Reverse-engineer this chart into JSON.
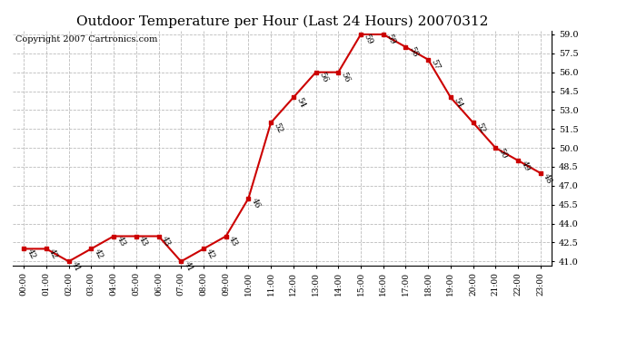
{
  "title": "Outdoor Temperature per Hour (Last 24 Hours) 20070312",
  "copyright": "Copyright 2007 Cartronics.com",
  "hours": [
    "00:00",
    "01:00",
    "02:00",
    "03:00",
    "04:00",
    "05:00",
    "06:00",
    "07:00",
    "08:00",
    "09:00",
    "10:00",
    "11:00",
    "12:00",
    "13:00",
    "14:00",
    "15:00",
    "16:00",
    "17:00",
    "18:00",
    "19:00",
    "20:00",
    "21:00",
    "22:00",
    "23:00"
  ],
  "temps": [
    42,
    42,
    41,
    42,
    43,
    43,
    43,
    41,
    42,
    43,
    46,
    52,
    54,
    56,
    56,
    59,
    59,
    58,
    57,
    54,
    52,
    50,
    49,
    48
  ],
  "line_color": "#cc0000",
  "marker_color": "#cc0000",
  "bg_color": "#ffffff",
  "grid_color": "#bbbbbb",
  "ylim_min": 41.0,
  "ylim_max": 59.0,
  "title_fontsize": 11,
  "copyright_fontsize": 7,
  "label_fontsize": 6.5
}
